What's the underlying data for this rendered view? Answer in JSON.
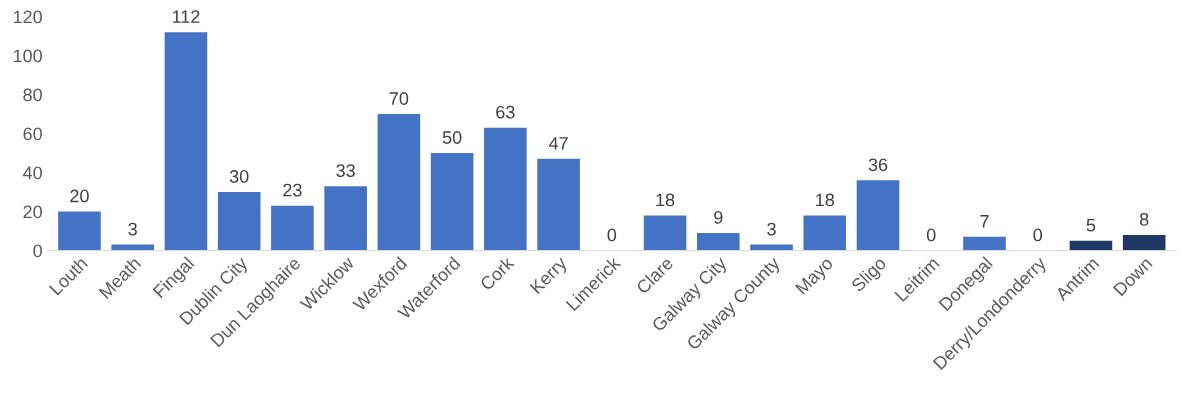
{
  "chart_data": {
    "type": "bar",
    "categories": [
      "Louth",
      "Meath",
      "Fingal",
      "Dublin City",
      "Dun Laoghaire",
      "Wicklow",
      "Wexford",
      "Waterford",
      "Cork",
      "Kerry",
      "Limerick",
      "Clare",
      "Galway City",
      "Galway County",
      "Mayo",
      "Sligo",
      "Leitrim",
      "Donegal",
      "Derry/Londonderry",
      "Antrim",
      "Down"
    ],
    "values": [
      20,
      3,
      112,
      30,
      23,
      33,
      70,
      50,
      63,
      47,
      0,
      18,
      9,
      3,
      18,
      36,
      0,
      7,
      0,
      5,
      8
    ],
    "colors": [
      "#4472c4",
      "#4472c4",
      "#4472c4",
      "#4472c4",
      "#4472c4",
      "#4472c4",
      "#4472c4",
      "#4472c4",
      "#4472c4",
      "#4472c4",
      "#4472c4",
      "#4472c4",
      "#4472c4",
      "#4472c4",
      "#4472c4",
      "#4472c4",
      "#4472c4",
      "#4472c4",
      "#4472c4",
      "#203864",
      "#203864"
    ],
    "ylim": [
      0,
      120
    ],
    "yticks": [
      0,
      20,
      40,
      60,
      80,
      100,
      120
    ],
    "grid": false,
    "data_labels": true,
    "legend": false
  }
}
